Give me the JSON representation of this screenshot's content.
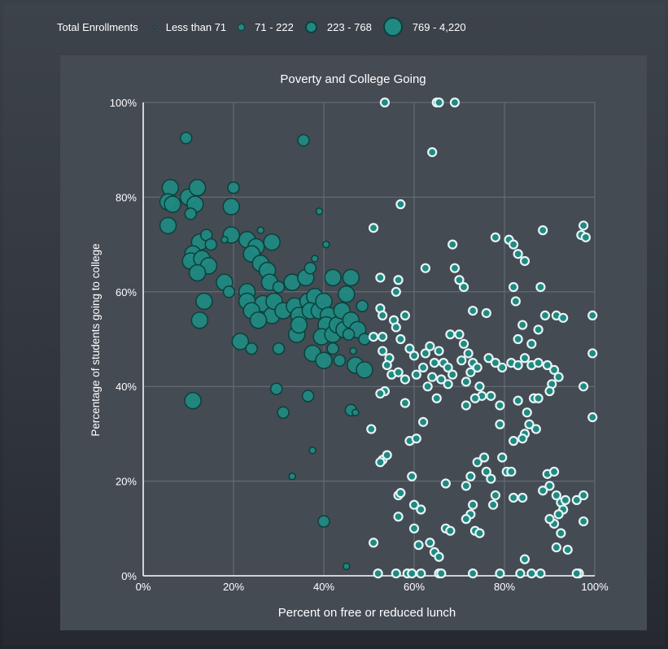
{
  "legend": {
    "title": "Total Enrollments",
    "items": [
      {
        "label": "Less than 71"
      },
      {
        "label": "71 - 222"
      },
      {
        "label": "223 - 768"
      },
      {
        "label": "769 - 4,220"
      }
    ]
  },
  "colors": {
    "bubble_fill": "#1f8a82",
    "bubble_stroke": "#0c3f3b",
    "highlight_fill": "#1f8a82",
    "highlight_stroke": "#e8f4f4",
    "panel": "#454b53",
    "grid": "#6b7178"
  },
  "chart_data": {
    "type": "scatter",
    "title": "Poverty and College Going",
    "xlabel": "Percent on free or reduced lunch",
    "ylabel": "Percentage of students going to college",
    "xlim": [
      0,
      100
    ],
    "ylim": [
      0,
      100
    ],
    "xticks": [
      "0%",
      "20%",
      "40%",
      "60%",
      "80%",
      "100%"
    ],
    "yticks": [
      "0%",
      "20%",
      "40%",
      "60%",
      "80%",
      "100%"
    ],
    "grid": true,
    "legend_placement": "top",
    "size_legend": [
      "Less than 71",
      "71 - 222",
      "223 - 768",
      "769 - 4,220"
    ],
    "points": [
      {
        "x": 6,
        "y": 82,
        "size": 3
      },
      {
        "x": 5.5,
        "y": 79,
        "size": 3
      },
      {
        "x": 6.5,
        "y": 78.5,
        "size": 3
      },
      {
        "x": 5.5,
        "y": 74,
        "size": 3
      },
      {
        "x": 10,
        "y": 80,
        "size": 3
      },
      {
        "x": 12,
        "y": 82,
        "size": 3
      },
      {
        "x": 11.5,
        "y": 78.5,
        "size": 3
      },
      {
        "x": 10.5,
        "y": 76.5,
        "size": 2
      },
      {
        "x": 12.5,
        "y": 70.5,
        "size": 3
      },
      {
        "x": 14,
        "y": 72,
        "size": 2
      },
      {
        "x": 11,
        "y": 68,
        "size": 3
      },
      {
        "x": 10.5,
        "y": 66.5,
        "size": 3
      },
      {
        "x": 13,
        "y": 67,
        "size": 3
      },
      {
        "x": 14.5,
        "y": 65.5,
        "size": 3
      },
      {
        "x": 12,
        "y": 64,
        "size": 3
      },
      {
        "x": 15,
        "y": 70,
        "size": 2
      },
      {
        "x": 19.5,
        "y": 78,
        "size": 3
      },
      {
        "x": 20,
        "y": 82,
        "size": 2
      },
      {
        "x": 19.5,
        "y": 72,
        "size": 3
      },
      {
        "x": 18,
        "y": 71,
        "size": 1
      },
      {
        "x": 18,
        "y": 62,
        "size": 3
      },
      {
        "x": 19,
        "y": 60,
        "size": 2
      },
      {
        "x": 13.5,
        "y": 58,
        "size": 3
      },
      {
        "x": 12.5,
        "y": 54,
        "size": 3
      },
      {
        "x": 11,
        "y": 37,
        "size": 3
      },
      {
        "x": 9.5,
        "y": 92.5,
        "size": 2
      },
      {
        "x": 35.5,
        "y": 92,
        "size": 2
      },
      {
        "x": 23,
        "y": 71,
        "size": 3
      },
      {
        "x": 25,
        "y": 69.5,
        "size": 3
      },
      {
        "x": 24,
        "y": 68,
        "size": 3
      },
      {
        "x": 26,
        "y": 66,
        "size": 3
      },
      {
        "x": 27.5,
        "y": 64.5,
        "size": 3
      },
      {
        "x": 26,
        "y": 73,
        "size": 1
      },
      {
        "x": 28.5,
        "y": 70.5,
        "size": 3
      },
      {
        "x": 28,
        "y": 62,
        "size": 3
      },
      {
        "x": 30,
        "y": 61,
        "size": 2
      },
      {
        "x": 23,
        "y": 60,
        "size": 3
      },
      {
        "x": 23,
        "y": 58,
        "size": 3
      },
      {
        "x": 26.5,
        "y": 57.5,
        "size": 3
      },
      {
        "x": 24,
        "y": 56,
        "size": 3
      },
      {
        "x": 28.5,
        "y": 55,
        "size": 3
      },
      {
        "x": 25.5,
        "y": 54,
        "size": 3
      },
      {
        "x": 29,
        "y": 58,
        "size": 3
      },
      {
        "x": 31,
        "y": 56,
        "size": 3
      },
      {
        "x": 33.5,
        "y": 57,
        "size": 3
      },
      {
        "x": 34.5,
        "y": 55,
        "size": 3
      },
      {
        "x": 33,
        "y": 62,
        "size": 3
      },
      {
        "x": 36,
        "y": 63,
        "size": 3
      },
      {
        "x": 37,
        "y": 65,
        "size": 2
      },
      {
        "x": 36.5,
        "y": 58,
        "size": 3
      },
      {
        "x": 38,
        "y": 59,
        "size": 3
      },
      {
        "x": 37,
        "y": 56,
        "size": 3
      },
      {
        "x": 39,
        "y": 56,
        "size": 3
      },
      {
        "x": 40,
        "y": 58,
        "size": 3
      },
      {
        "x": 41,
        "y": 55,
        "size": 3
      },
      {
        "x": 40.5,
        "y": 53,
        "size": 3
      },
      {
        "x": 39.5,
        "y": 50.5,
        "size": 3
      },
      {
        "x": 42,
        "y": 51,
        "size": 3
      },
      {
        "x": 43,
        "y": 53,
        "size": 3
      },
      {
        "x": 44,
        "y": 56,
        "size": 3
      },
      {
        "x": 45,
        "y": 59.5,
        "size": 3
      },
      {
        "x": 46,
        "y": 63,
        "size": 3
      },
      {
        "x": 42,
        "y": 63,
        "size": 3
      },
      {
        "x": 40.5,
        "y": 70,
        "size": 1
      },
      {
        "x": 39,
        "y": 77,
        "size": 1
      },
      {
        "x": 38,
        "y": 67,
        "size": 1
      },
      {
        "x": 34,
        "y": 51,
        "size": 3
      },
      {
        "x": 34.5,
        "y": 53,
        "size": 3
      },
      {
        "x": 37.5,
        "y": 47,
        "size": 3
      },
      {
        "x": 40,
        "y": 45.5,
        "size": 3
      },
      {
        "x": 42,
        "y": 48,
        "size": 2
      },
      {
        "x": 43.5,
        "y": 45.5,
        "size": 2
      },
      {
        "x": 44.5,
        "y": 52,
        "size": 3
      },
      {
        "x": 46,
        "y": 54,
        "size": 3
      },
      {
        "x": 47.5,
        "y": 52,
        "size": 3
      },
      {
        "x": 46.5,
        "y": 47.5,
        "size": 1
      },
      {
        "x": 49,
        "y": 50,
        "size": 2
      },
      {
        "x": 21.5,
        "y": 49.5,
        "size": 3
      },
      {
        "x": 24,
        "y": 48,
        "size": 2
      },
      {
        "x": 30,
        "y": 48,
        "size": 2
      },
      {
        "x": 29.5,
        "y": 39.5,
        "size": 2
      },
      {
        "x": 31,
        "y": 34.5,
        "size": 2
      },
      {
        "x": 36.5,
        "y": 38,
        "size": 2
      },
      {
        "x": 46,
        "y": 35,
        "size": 2
      },
      {
        "x": 47,
        "y": 34.5,
        "size": 1
      },
      {
        "x": 47,
        "y": 44.5,
        "size": 3
      },
      {
        "x": 49,
        "y": 43.5,
        "size": 3
      },
      {
        "x": 37.5,
        "y": 26.5,
        "size": 1
      },
      {
        "x": 33,
        "y": 21,
        "size": 1
      },
      {
        "x": 40,
        "y": 11.5,
        "size": 2
      },
      {
        "x": 45,
        "y": 2,
        "size": 1
      },
      {
        "x": 48.5,
        "y": 57,
        "size": 2
      },
      {
        "x": 45.5,
        "y": 51,
        "size": 2
      }
    ],
    "highlighted_points": [
      {
        "x": 53.5,
        "y": 100
      },
      {
        "x": 65,
        "y": 100
      },
      {
        "x": 65.5,
        "y": 100
      },
      {
        "x": 69,
        "y": 100
      },
      {
        "x": 64,
        "y": 89.5
      },
      {
        "x": 57,
        "y": 78.5
      },
      {
        "x": 51,
        "y": 73.5
      },
      {
        "x": 68.5,
        "y": 70
      },
      {
        "x": 62.5,
        "y": 65
      },
      {
        "x": 69,
        "y": 65
      },
      {
        "x": 70,
        "y": 62.5
      },
      {
        "x": 71,
        "y": 61
      },
      {
        "x": 52.5,
        "y": 63
      },
      {
        "x": 56.5,
        "y": 62.5
      },
      {
        "x": 56,
        "y": 60
      },
      {
        "x": 73,
        "y": 56
      },
      {
        "x": 76,
        "y": 55.5
      },
      {
        "x": 58,
        "y": 55
      },
      {
        "x": 55.5,
        "y": 54
      },
      {
        "x": 56,
        "y": 52.5
      },
      {
        "x": 52.5,
        "y": 56.5
      },
      {
        "x": 53,
        "y": 55
      },
      {
        "x": 51,
        "y": 50.5
      },
      {
        "x": 53,
        "y": 50.5
      },
      {
        "x": 57,
        "y": 50
      },
      {
        "x": 59,
        "y": 48
      },
      {
        "x": 60,
        "y": 46.5
      },
      {
        "x": 53,
        "y": 47.5
      },
      {
        "x": 54.5,
        "y": 46
      },
      {
        "x": 55,
        "y": 42.5
      },
      {
        "x": 56.5,
        "y": 43
      },
      {
        "x": 58,
        "y": 41.5
      },
      {
        "x": 54,
        "y": 44.5
      },
      {
        "x": 53.5,
        "y": 39
      },
      {
        "x": 52.5,
        "y": 38.5
      },
      {
        "x": 58,
        "y": 36.5
      },
      {
        "x": 60.5,
        "y": 42.5
      },
      {
        "x": 62,
        "y": 44
      },
      {
        "x": 62.5,
        "y": 47
      },
      {
        "x": 63.5,
        "y": 48.5
      },
      {
        "x": 64.5,
        "y": 45
      },
      {
        "x": 65.5,
        "y": 47.5
      },
      {
        "x": 66.5,
        "y": 45
      },
      {
        "x": 67.5,
        "y": 44
      },
      {
        "x": 68.5,
        "y": 42.5
      },
      {
        "x": 66,
        "y": 41.5
      },
      {
        "x": 64,
        "y": 42
      },
      {
        "x": 63,
        "y": 40
      },
      {
        "x": 65,
        "y": 37.5
      },
      {
        "x": 67.5,
        "y": 40.5
      },
      {
        "x": 68,
        "y": 51
      },
      {
        "x": 70,
        "y": 51
      },
      {
        "x": 71,
        "y": 49
      },
      {
        "x": 72,
        "y": 47
      },
      {
        "x": 73,
        "y": 45
      },
      {
        "x": 74,
        "y": 44
      },
      {
        "x": 70.5,
        "y": 45.5
      },
      {
        "x": 71.5,
        "y": 41
      },
      {
        "x": 72.5,
        "y": 43
      },
      {
        "x": 74.5,
        "y": 40
      },
      {
        "x": 75,
        "y": 38
      },
      {
        "x": 73.5,
        "y": 37.5
      },
      {
        "x": 71.5,
        "y": 36
      },
      {
        "x": 77,
        "y": 38
      },
      {
        "x": 78,
        "y": 45
      },
      {
        "x": 79.5,
        "y": 44
      },
      {
        "x": 76.5,
        "y": 46
      },
      {
        "x": 81.5,
        "y": 45
      },
      {
        "x": 83,
        "y": 44.5
      },
      {
        "x": 84.5,
        "y": 46
      },
      {
        "x": 86,
        "y": 44.5
      },
      {
        "x": 87.5,
        "y": 45
      },
      {
        "x": 89.5,
        "y": 44.5
      },
      {
        "x": 91,
        "y": 43.5
      },
      {
        "x": 92,
        "y": 42
      },
      {
        "x": 90.5,
        "y": 40.5
      },
      {
        "x": 81,
        "y": 71
      },
      {
        "x": 82,
        "y": 70
      },
      {
        "x": 83,
        "y": 68
      },
      {
        "x": 84.5,
        "y": 66.5
      },
      {
        "x": 78,
        "y": 71.5
      },
      {
        "x": 82,
        "y": 61
      },
      {
        "x": 82.5,
        "y": 58
      },
      {
        "x": 88,
        "y": 61
      },
      {
        "x": 88.5,
        "y": 73
      },
      {
        "x": 97.5,
        "y": 74
      },
      {
        "x": 97,
        "y": 72
      },
      {
        "x": 98,
        "y": 71.5
      },
      {
        "x": 84,
        "y": 53
      },
      {
        "x": 87.5,
        "y": 52
      },
      {
        "x": 89,
        "y": 55
      },
      {
        "x": 91.5,
        "y": 55
      },
      {
        "x": 93,
        "y": 54.5
      },
      {
        "x": 99.5,
        "y": 55
      },
      {
        "x": 83,
        "y": 50
      },
      {
        "x": 86,
        "y": 49
      },
      {
        "x": 99.5,
        "y": 47
      },
      {
        "x": 90,
        "y": 39
      },
      {
        "x": 83,
        "y": 37
      },
      {
        "x": 85,
        "y": 34.5
      },
      {
        "x": 86.5,
        "y": 37.5
      },
      {
        "x": 87.5,
        "y": 37.5
      },
      {
        "x": 85.5,
        "y": 32
      },
      {
        "x": 87,
        "y": 31
      },
      {
        "x": 84.5,
        "y": 30
      },
      {
        "x": 84,
        "y": 29
      },
      {
        "x": 82,
        "y": 28.5
      },
      {
        "x": 97.5,
        "y": 40
      },
      {
        "x": 99.5,
        "y": 33.5
      },
      {
        "x": 79,
        "y": 36
      },
      {
        "x": 79,
        "y": 32
      },
      {
        "x": 50.5,
        "y": 31
      },
      {
        "x": 53,
        "y": 24.5
      },
      {
        "x": 54,
        "y": 25.5
      },
      {
        "x": 52.5,
        "y": 24
      },
      {
        "x": 59,
        "y": 28.5
      },
      {
        "x": 60.5,
        "y": 29
      },
      {
        "x": 62,
        "y": 32.5
      },
      {
        "x": 59.5,
        "y": 21
      },
      {
        "x": 56.5,
        "y": 17
      },
      {
        "x": 57,
        "y": 17.5
      },
      {
        "x": 60,
        "y": 15
      },
      {
        "x": 61.5,
        "y": 14
      },
      {
        "x": 56.5,
        "y": 12.5
      },
      {
        "x": 60,
        "y": 10
      },
      {
        "x": 61,
        "y": 6.5
      },
      {
        "x": 63.5,
        "y": 7
      },
      {
        "x": 64.5,
        "y": 5
      },
      {
        "x": 65.5,
        "y": 4
      },
      {
        "x": 67,
        "y": 10
      },
      {
        "x": 68,
        "y": 9.5
      },
      {
        "x": 67,
        "y": 19.5
      },
      {
        "x": 71.5,
        "y": 19
      },
      {
        "x": 72.5,
        "y": 21
      },
      {
        "x": 74,
        "y": 24
      },
      {
        "x": 75.5,
        "y": 25
      },
      {
        "x": 76,
        "y": 22
      },
      {
        "x": 77,
        "y": 20.5
      },
      {
        "x": 78,
        "y": 17
      },
      {
        "x": 73,
        "y": 15
      },
      {
        "x": 72.5,
        "y": 13
      },
      {
        "x": 71.5,
        "y": 12
      },
      {
        "x": 73.5,
        "y": 9.5
      },
      {
        "x": 74.5,
        "y": 9
      },
      {
        "x": 77.5,
        "y": 15
      },
      {
        "x": 79.5,
        "y": 25
      },
      {
        "x": 80.5,
        "y": 22
      },
      {
        "x": 81.5,
        "y": 22
      },
      {
        "x": 82,
        "y": 16.5
      },
      {
        "x": 84,
        "y": 16.5
      },
      {
        "x": 84.5,
        "y": 3.5
      },
      {
        "x": 88.5,
        "y": 18
      },
      {
        "x": 89.5,
        "y": 21.5
      },
      {
        "x": 91,
        "y": 22
      },
      {
        "x": 90,
        "y": 19
      },
      {
        "x": 91.5,
        "y": 17
      },
      {
        "x": 92.5,
        "y": 15.5
      },
      {
        "x": 93.5,
        "y": 16
      },
      {
        "x": 93,
        "y": 14
      },
      {
        "x": 92,
        "y": 13
      },
      {
        "x": 91,
        "y": 11
      },
      {
        "x": 90,
        "y": 12
      },
      {
        "x": 92.5,
        "y": 9
      },
      {
        "x": 94,
        "y": 5.5
      },
      {
        "x": 91.5,
        "y": 6
      },
      {
        "x": 96,
        "y": 16
      },
      {
        "x": 97.5,
        "y": 17
      },
      {
        "x": 96.5,
        "y": 0.5
      },
      {
        "x": 97.5,
        "y": 11.5
      },
      {
        "x": 51,
        "y": 7
      },
      {
        "x": 52,
        "y": 0.5
      },
      {
        "x": 56,
        "y": 0.5
      },
      {
        "x": 58.5,
        "y": 0.5
      },
      {
        "x": 59.5,
        "y": 0.5
      },
      {
        "x": 61.5,
        "y": 0.5
      },
      {
        "x": 65.5,
        "y": 0.5
      },
      {
        "x": 66,
        "y": 0.5
      },
      {
        "x": 73,
        "y": 0.5
      },
      {
        "x": 79,
        "y": 0.5
      },
      {
        "x": 83.5,
        "y": 0.5
      },
      {
        "x": 86,
        "y": 0.5
      },
      {
        "x": 88,
        "y": 0.5
      },
      {
        "x": 96,
        "y": 0.5
      }
    ]
  }
}
